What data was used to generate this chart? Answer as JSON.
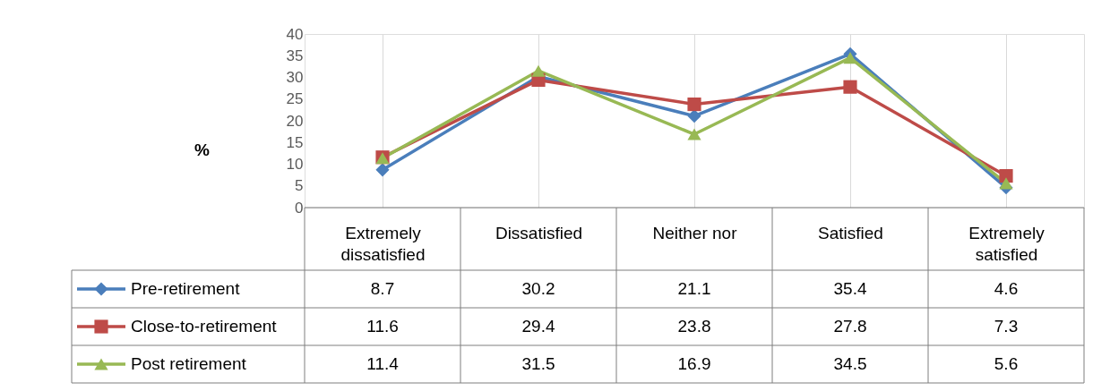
{
  "chart_data": {
    "type": "line",
    "ylabel": "%",
    "categories": [
      "Extremely dissatisfied",
      "Dissatisfied",
      "Neither nor",
      "Satisfied",
      "Extremely satisfied"
    ],
    "series": [
      {
        "name": "Pre-retirement",
        "color": "#4a7ebb",
        "marker": "diamond",
        "values": [
          8.7,
          30.2,
          21.1,
          35.4,
          4.6
        ]
      },
      {
        "name": "Close-to-retirement",
        "color": "#be4b48",
        "marker": "square",
        "values": [
          11.6,
          29.4,
          23.8,
          27.8,
          7.3
        ]
      },
      {
        "name": "Post retirement",
        "color": "#98b954",
        "marker": "triangle",
        "values": [
          11.4,
          31.5,
          16.9,
          34.5,
          5.6
        ]
      }
    ],
    "ylim": [
      0,
      40
    ],
    "yticks": [
      0,
      5,
      10,
      15,
      20,
      25,
      30,
      35,
      40
    ],
    "grid": "x",
    "legend": "bottom",
    "data_labels": true,
    "line_style": "solid"
  }
}
